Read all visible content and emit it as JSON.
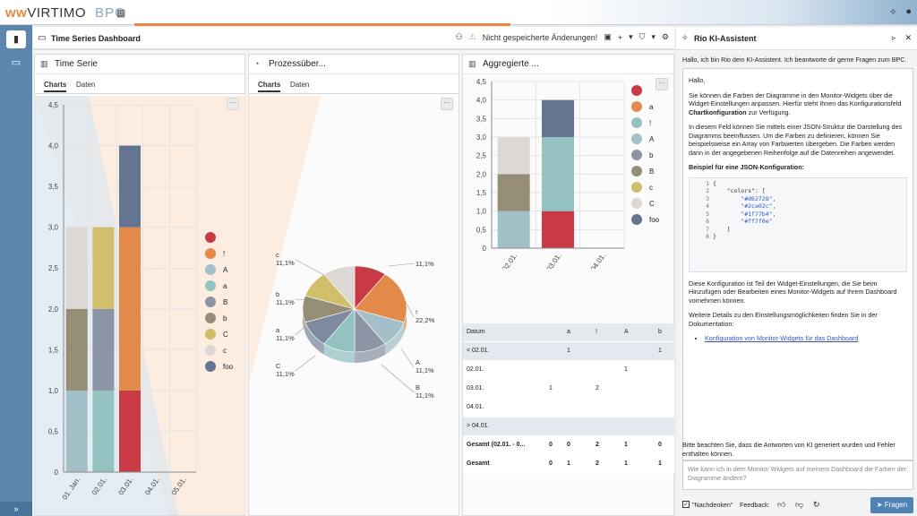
{
  "app": {
    "brand": "VIRTIMO",
    "product": "BPC",
    "accent": "#e8893f"
  },
  "dashboard": {
    "title": "Time Series Dashboard",
    "unsaved": "Nicht gespeicherte Änderungen!"
  },
  "tabs": {
    "charts": "Charts",
    "data": "Daten"
  },
  "widgets": {
    "ts_title": "Time Serie",
    "pie_title": "Prozessüber...",
    "agg_title": "Aggregierte ..."
  },
  "legend_series": [
    {
      "name": "",
      "color": "#c93a44"
    },
    {
      "name": "!",
      "color": "#e38a4a"
    },
    {
      "name": "A",
      "color": "#a3bfc8"
    },
    {
      "name": "a",
      "color": "#94c2c1"
    },
    {
      "name": "B",
      "color": "#8b95a6"
    },
    {
      "name": "b",
      "color": "#958d75"
    },
    {
      "name": "C",
      "color": "#d0be6a"
    },
    {
      "name": "c",
      "color": "#dcd8d3"
    },
    {
      "name": "foo",
      "color": "#647592"
    }
  ],
  "legend_agg": [
    {
      "name": "",
      "color": "#c93a44"
    },
    {
      "name": "a",
      "color": "#e38a4a"
    },
    {
      "name": "!",
      "color": "#94c2c1"
    },
    {
      "name": "A",
      "color": "#a3bfc8"
    },
    {
      "name": "b",
      "color": "#8b95a6"
    },
    {
      "name": "B",
      "color": "#958d75"
    },
    {
      "name": "c",
      "color": "#d0be6a"
    },
    {
      "name": "C",
      "color": "#dcd8d3"
    },
    {
      "name": "foo",
      "color": "#647592"
    }
  ],
  "chart_data": [
    {
      "type": "bar",
      "stacked": true,
      "categories": [
        "01. Jan.",
        "02.01.",
        "03.01.",
        "04.01.",
        "05.01."
      ],
      "ylim": [
        0,
        4.5
      ],
      "yticks": [
        "0",
        "0,5",
        "1,0",
        "1,5",
        "2,0",
        "2,5",
        "3,0",
        "3,5",
        "4,0",
        "4,5"
      ],
      "segments": [
        [
          {
            "v": 1,
            "color": "#a3bfc8"
          },
          {
            "v": 1,
            "color": "#958d75"
          },
          {
            "v": 1,
            "color": "#dcd8d3"
          }
        ],
        [
          {
            "v": 1,
            "color": "#94c2c1"
          },
          {
            "v": 1,
            "color": "#8b95a6"
          },
          {
            "v": 1,
            "color": "#d0be6a"
          }
        ],
        [
          {
            "v": 1,
            "color": "#c93a44"
          },
          {
            "v": 2,
            "color": "#e38a4a"
          },
          {
            "v": 1,
            "color": "#647592"
          }
        ],
        [],
        []
      ]
    },
    {
      "type": "pie",
      "slices": [
        {
          "name": "",
          "value": 11.1,
          "label": "11,1%",
          "color": "#c93a44"
        },
        {
          "name": "!",
          "value": 22.2,
          "label": "22,2%",
          "color": "#e38a4a"
        },
        {
          "name": "A",
          "value": 11.1,
          "label": "11,1%",
          "color": "#a3bfc8"
        },
        {
          "name": "B",
          "value": 11.1,
          "label": "11,1%",
          "color": "#8b95a6"
        },
        {
          "name": "C",
          "value": 11.1,
          "label": "11,1%",
          "color": "#94c2c1"
        },
        {
          "name": "a",
          "value": 11.1,
          "label": "11,1%",
          "color": "#7d8aa0"
        },
        {
          "name": "b",
          "value": 11.1,
          "label": "11,1%",
          "color": "#958d75"
        },
        {
          "name": "c",
          "value": 11.1,
          "label": "11,1%",
          "color": "#d0be6a"
        },
        {
          "name": "",
          "value": 11.1,
          "label": "",
          "color": "#dcd8d3"
        }
      ],
      "outer_labels": [
        {
          "t1": "",
          "t2": "11,1%"
        },
        {
          "t1": "!",
          "t2": "22,2%"
        },
        {
          "t1": "A",
          "t2": "11,1%"
        },
        {
          "t1": "B",
          "t2": "11,1%"
        },
        {
          "t1": "C",
          "t2": "11,1%"
        },
        {
          "t1": "a",
          "t2": "11,1%"
        },
        {
          "t1": "b",
          "t2": "11,1%"
        },
        {
          "t1": "c",
          "t2": "11,1%"
        }
      ]
    },
    {
      "type": "bar",
      "stacked": true,
      "categories": [
        "02.01.",
        "03.01.",
        "04.01."
      ],
      "ylim": [
        0,
        4.5
      ],
      "yticks": [
        "0",
        "0,5",
        "1,0",
        "1,5",
        "2,0",
        "2,5",
        "3,0",
        "3,5",
        "4,0",
        "4,5"
      ],
      "segments": [
        [
          {
            "v": 1,
            "color": "#a3bfc8"
          },
          {
            "v": 1,
            "color": "#958d75"
          },
          {
            "v": 1,
            "color": "#dcd8d3"
          }
        ],
        [
          {
            "v": 1,
            "color": "#c93a44"
          },
          {
            "v": 2,
            "color": "#94c2c1"
          },
          {
            "v": 1,
            "color": "#647592"
          }
        ],
        []
      ]
    },
    {
      "type": "table",
      "columns": [
        "Datum",
        "",
        "a",
        "!",
        "A",
        "b"
      ],
      "rows": [
        {
          "cells": [
            "< 02.01.",
            "",
            "1",
            "",
            "",
            "1"
          ],
          "shade": true,
          "bold": false
        },
        {
          "cells": [
            "02.01.",
            "",
            "",
            "",
            "1",
            ""
          ],
          "shade": false,
          "bold": false
        },
        {
          "cells": [
            "03.01.",
            "1",
            "",
            "2",
            "",
            ""
          ],
          "shade": false,
          "bold": false
        },
        {
          "cells": [
            "04.01.",
            "",
            "",
            "",
            "",
            ""
          ],
          "shade": false,
          "bold": false
        },
        {
          "cells": [
            "> 04.01.",
            "",
            "",
            "",
            "",
            ""
          ],
          "shade": true,
          "bold": false
        },
        {
          "cells": [
            "Gesamt (02.01. - 0...",
            "0",
            "0",
            "2",
            "1",
            "0"
          ],
          "shade": false,
          "bold": true
        },
        {
          "cells": [
            "Gesamt",
            "0",
            "1",
            "2",
            "1",
            "1"
          ],
          "shade": false,
          "bold": true
        }
      ]
    }
  ],
  "chat": {
    "title": "Rio KI-Assistent",
    "intro": "Hallo, ich bin Rio dein KI-Assistent. Ich beantworte dir gerne Fragen zum BPC.",
    "greet": "Hallo,",
    "p1a": "Sie können die Farben der Diagramme in den Monitor-Widgets über die Widget-Einstellungen anpassen. Hierfür steht Ihnen das Konfigurationsfeld ",
    "p1b": "Chartkonfiguration",
    "p1c": " zur Verfügung.",
    "p2": "In diesem Feld können Sie mittels einer JSON-Struktur die Darstellung des Diagramms beeinflussen. Um die Farben zu definieren, können Sie beispielsweise ein Array von Farbwerten übergeben. Die Farben werden dann in der angegebenen Reihenfolge auf die Datenreihen angewendet.",
    "example_head": "Beispiel für eine JSON-Konfiguration:",
    "code_lines": [
      "1",
      "2",
      "3",
      "4",
      "5",
      "6",
      "7",
      "8"
    ],
    "code": [
      "{",
      "    \"colors\": [",
      "        \"#d62728\",",
      "        \"#2ca02c\",",
      "        \"#1f77b4\",",
      "        \"#ff7f0e\"",
      "    ]",
      "}"
    ],
    "p3": "Diese Konfiguration ist Teil der Widget-Einstellungen, die Sie beim Hinzufügen oder Bearbeiten eines Monitor-Widgets auf Ihrem Dashboard vornehmen können.",
    "p4": "Weitere Details zu den Einstellungsmöglichkeiten finden Sie in der Dokumentation:",
    "link": "Konfiguration von Monitor-Widgets für das Dashboard",
    "disclaimer": "Bitte beachten Sie, dass die Antworten von KI generiert wurden und Fehler enthalten können.",
    "input_value": "Wie kann ich in dem Monitor Widgets auf meinem Dashboard die Farben der Diagramme ändern?",
    "think_label": "\"Nachdenken\"",
    "feedback_label": "Feedback:",
    "send_label": "Fragen"
  }
}
